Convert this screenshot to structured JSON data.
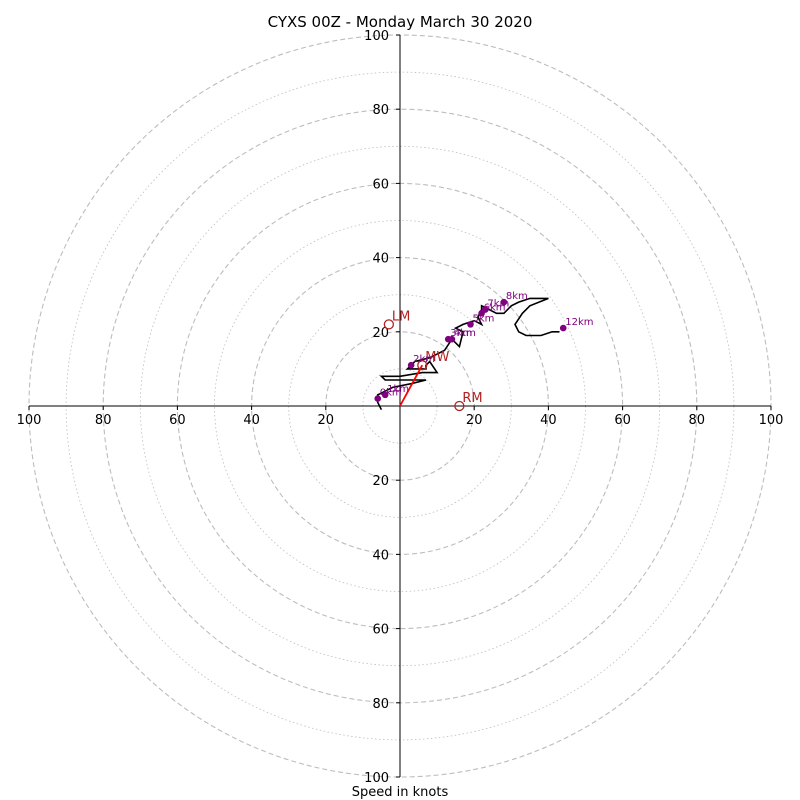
{
  "chart_data": {
    "type": "hodograph",
    "title": "CYXS 00Z - Monday March 30 2020",
    "xlabel": "Speed in knots",
    "rings": [
      10,
      20,
      30,
      40,
      50,
      60,
      70,
      80,
      90,
      100
    ],
    "ring_ticks": [
      20,
      40,
      60,
      80,
      100
    ],
    "xlim": [
      -100,
      100
    ],
    "ylim": [
      -100,
      100
    ],
    "colors": {
      "ring_grid": "#bdbdbd",
      "trace": "#000000",
      "height_marker": "#800080",
      "motion": "#b22222",
      "mean_wind_line": "#ff0000"
    },
    "trace": [
      [
        -5,
        -1
      ],
      [
        -6,
        1
      ],
      [
        -6,
        3
      ],
      [
        -2,
        5
      ],
      [
        3,
        6
      ],
      [
        7,
        7
      ],
      [
        -4,
        7
      ],
      [
        -5,
        8
      ],
      [
        0,
        8
      ],
      [
        6,
        9
      ],
      [
        10,
        9
      ],
      [
        8,
        12
      ],
      [
        7,
        11
      ],
      [
        7,
        10
      ],
      [
        2,
        10
      ],
      [
        4,
        12
      ],
      [
        8,
        13
      ],
      [
        12,
        15
      ],
      [
        14,
        18
      ],
      [
        16,
        16
      ],
      [
        17,
        20
      ],
      [
        15,
        21
      ],
      [
        17,
        22
      ],
      [
        20,
        23
      ],
      [
        22,
        22
      ],
      [
        21,
        24
      ],
      [
        22,
        26
      ],
      [
        22,
        27
      ],
      [
        24,
        26
      ],
      [
        26,
        25
      ],
      [
        28,
        25
      ],
      [
        30,
        27
      ],
      [
        32,
        28
      ],
      [
        35,
        29
      ],
      [
        40,
        29
      ],
      [
        35,
        27
      ],
      [
        33,
        25
      ],
      [
        31,
        22
      ],
      [
        32,
        20
      ],
      [
        34,
        19
      ],
      [
        38,
        19
      ],
      [
        41,
        20
      ],
      [
        43,
        20
      ]
    ],
    "height_markers": [
      {
        "label": "0km",
        "x": -6,
        "y": 2
      },
      {
        "label": "1km",
        "x": -4,
        "y": 3
      },
      {
        "label": "2km",
        "x": 3,
        "y": 11
      },
      {
        "label": "3km",
        "x": 13,
        "y": 18
      },
      {
        "label": "4km",
        "x": 14,
        "y": 18
      },
      {
        "label": "5km",
        "x": 19,
        "y": 22
      },
      {
        "label": "6km",
        "x": 22,
        "y": 25
      },
      {
        "label": "7km",
        "x": 23,
        "y": 26
      },
      {
        "label": "8km",
        "x": 28,
        "y": 28
      },
      {
        "label": "12km",
        "x": 44,
        "y": 21
      }
    ],
    "storm_motions": [
      {
        "label": "LM",
        "x": -3,
        "y": 22
      },
      {
        "label": "MW",
        "x": 6,
        "y": 11
      },
      {
        "label": "RM",
        "x": 16,
        "y": 0
      }
    ],
    "mean_wind_vector": {
      "x": 6,
      "y": 11
    }
  }
}
